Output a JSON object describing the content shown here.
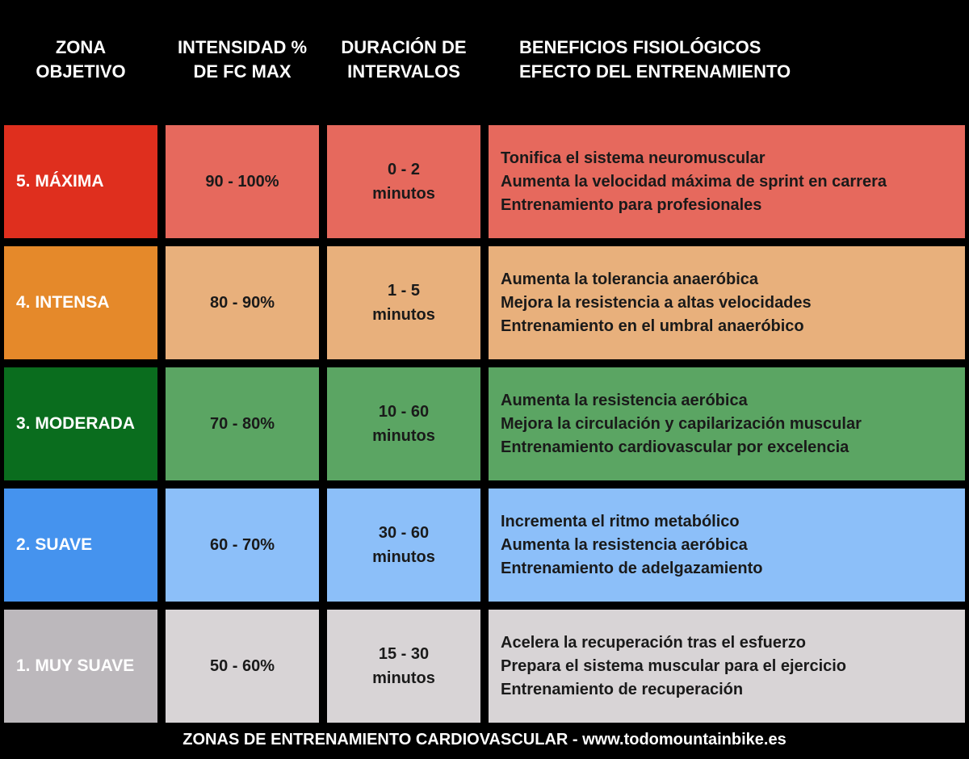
{
  "header": {
    "columns": [
      {
        "lines": [
          "ZONA",
          "OBJETIVO"
        ]
      },
      {
        "lines": [
          "INTENSIDAD %",
          "DE FC MAX"
        ]
      },
      {
        "lines": [
          "DURACIÓN DE",
          "INTERVALOS"
        ]
      },
      {
        "lines": [
          "BENEFICIOS FISIOLÓGICOS",
          "EFECTO DEL ENTRENAMIENTO"
        ]
      }
    ]
  },
  "table": {
    "rows": [
      {
        "zone": "5. MÁXIMA",
        "intensity": "90 - 100%",
        "duration": [
          "0 - 2",
          "minutos"
        ],
        "benefits": [
          "Tonifica el sistema neuromuscular",
          "Aumenta la velocidad máxima de sprint en carrera",
          "Entrenamiento para profesionales"
        ]
      },
      {
        "zone": "4. INTENSA",
        "intensity": "80 - 90%",
        "duration": [
          "1 - 5",
          "minutos"
        ],
        "benefits": [
          "Aumenta la tolerancia anaeróbica",
          "Mejora la resistencia a altas velocidades",
          "Entrenamiento en el umbral anaeróbico"
        ]
      },
      {
        "zone": "3. MODERADA",
        "intensity": "70 - 80%",
        "duration": [
          "10 - 60",
          "minutos"
        ],
        "benefits": [
          "Aumenta la resistencia aeróbica",
          "Mejora la circulación y capilarización muscular",
          "Entrenamiento cardiovascular por excelencia"
        ]
      },
      {
        "zone": "2. SUAVE",
        "intensity": "60 - 70%",
        "duration": [
          "30 - 60",
          "minutos"
        ],
        "benefits": [
          "Incrementa el ritmo metabólico",
          "Aumenta la resistencia aeróbica",
          "Entrenamiento de adelgazamiento"
        ]
      },
      {
        "zone": "1. MUY SUAVE",
        "intensity": "50 - 60%",
        "duration": [
          "15 - 30",
          "minutos"
        ],
        "benefits": [
          "Acelera la recuperación tras el esfuerzo",
          "Prepara el sistema muscular para el ejercicio",
          "Entrenamiento de recuperación"
        ]
      }
    ]
  },
  "footer": {
    "text": "ZONAS DE ENTRENAMIENTO CARDIOVASCULAR - www.todomountainbike.es"
  }
}
